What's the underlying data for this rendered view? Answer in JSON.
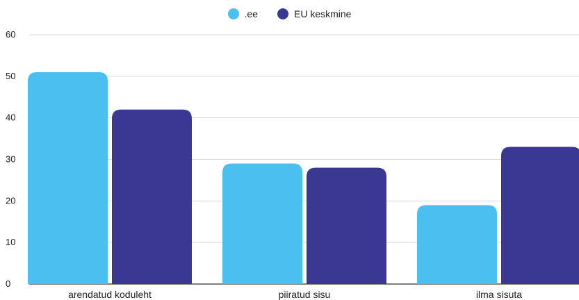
{
  "chart_data": {
    "type": "bar",
    "categories": [
      "arendatud koduleht",
      "piiratud sisu",
      "ilma sisuta"
    ],
    "series": [
      {
        "name": ".ee",
        "values": [
          51,
          29,
          19
        ],
        "color": "#4bbfef"
      },
      {
        "name": "EU keskmine",
        "values": [
          42,
          28,
          33
        ],
        "color": "#3b3894"
      }
    ],
    "ylim": [
      0,
      60
    ],
    "yticks": [
      0,
      10,
      20,
      30,
      40,
      50,
      60
    ],
    "grid": true,
    "legend_position": "top-center",
    "title": "",
    "xlabel": "",
    "ylabel": ""
  }
}
